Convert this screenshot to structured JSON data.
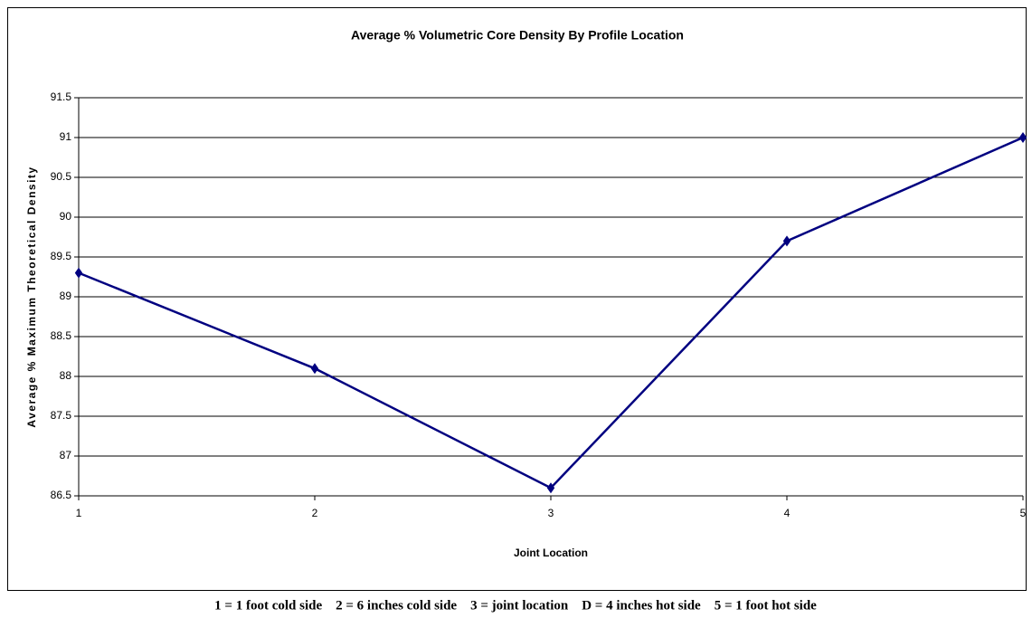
{
  "chart_data": {
    "type": "line",
    "title": "Average % Volumetric Core Density  By Profile Location",
    "x_label": "Joint Location",
    "y_label": "Average %   Maximum Theoretical Density",
    "caption": "1 = 1 foot cold side    2 = 6 inches cold side    3 = joint location    D = 4 inches hot side    5 = 1 foot hot side",
    "x": [
      1,
      2,
      3,
      4,
      5
    ],
    "series": [
      {
        "name": "Average % Volumetric Core Density",
        "color": "#000080",
        "values": [
          89.3,
          88.1,
          86.6,
          89.7,
          91.0
        ]
      }
    ],
    "xlim": [
      1,
      5
    ],
    "xticks": [
      1,
      2,
      3,
      4,
      5
    ],
    "ylim": [
      86.5,
      91.5
    ],
    "yticks": [
      86.5,
      87,
      87.5,
      88,
      88.5,
      89,
      89.5,
      90,
      90.5,
      91,
      91.5
    ],
    "grid": true,
    "legend": false
  }
}
